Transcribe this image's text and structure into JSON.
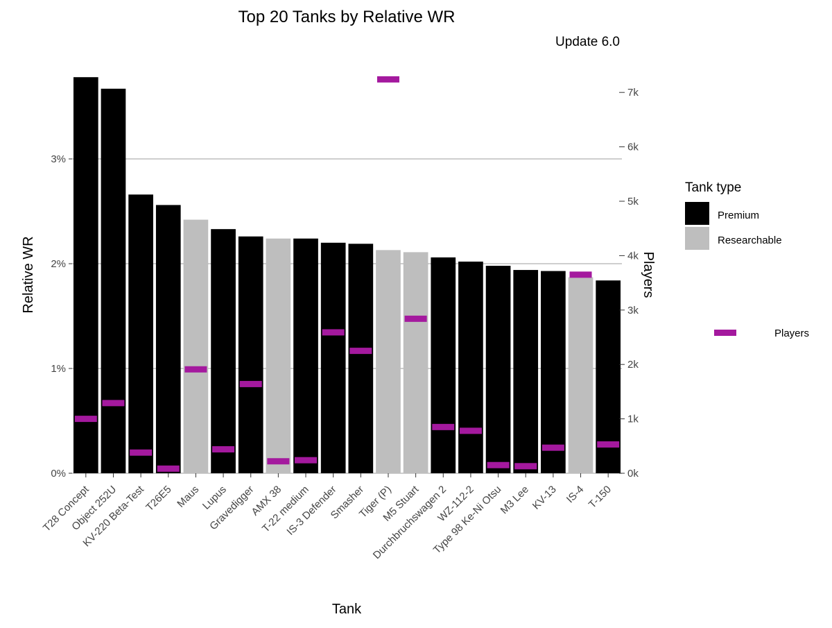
{
  "chart_data": {
    "type": "bar",
    "title": "Top 20 Tanks by Relative WR",
    "subtitle": "Update 6.0",
    "xlabel": "Tank",
    "ylabel": "Relative WR",
    "y2label": "Players",
    "ylim": [
      0,
      3.78
    ],
    "y2lim": [
      0,
      7340
    ],
    "yticks": [
      "0%",
      "1%",
      "2%",
      "3%"
    ],
    "y2ticks": [
      "0k",
      "1k",
      "2k",
      "3k",
      "4k",
      "5k",
      "6k",
      "7k"
    ],
    "grid": true,
    "legend_position": "right",
    "colors": {
      "Premium": "#000000",
      "Researchable": "#bebebe",
      "Players": "#a4199e"
    },
    "legend": {
      "title": "Tank type",
      "items": [
        "Premium",
        "Researchable"
      ],
      "players_label": "Players"
    },
    "categories": [
      "T28 Concept",
      "Object 252U",
      "KV-220 Beta-Test",
      "T26E5",
      "Maus",
      "Lupus",
      "Gravedigger",
      "AMX 38",
      "T-22 medium",
      "IS-3 Defender",
      "Smasher",
      "Tiger (P)",
      "M5 Stuart",
      "Durchbruchswagen 2",
      "WZ-112-2",
      "Type 98 Ke-Ni Otsu",
      "M3 Lee",
      "KV-13",
      "IS-4",
      "T-150"
    ],
    "tank_type": [
      "Premium",
      "Premium",
      "Premium",
      "Premium",
      "Researchable",
      "Premium",
      "Premium",
      "Researchable",
      "Premium",
      "Premium",
      "Premium",
      "Researchable",
      "Researchable",
      "Premium",
      "Premium",
      "Premium",
      "Premium",
      "Premium",
      "Researchable",
      "Premium"
    ],
    "series": [
      {
        "name": "Relative WR",
        "unit": "%",
        "values": [
          3.78,
          3.67,
          2.66,
          2.56,
          2.42,
          2.33,
          2.26,
          2.24,
          2.24,
          2.2,
          2.19,
          2.13,
          2.11,
          2.06,
          2.02,
          1.98,
          1.94,
          1.93,
          1.87,
          1.84
        ]
      },
      {
        "name": "Players",
        "values": [
          1000,
          1290,
          380,
          85,
          1910,
          440,
          1640,
          220,
          240,
          2590,
          2250,
          7240,
          2840,
          850,
          780,
          150,
          130,
          470,
          3650,
          530
        ]
      }
    ]
  }
}
